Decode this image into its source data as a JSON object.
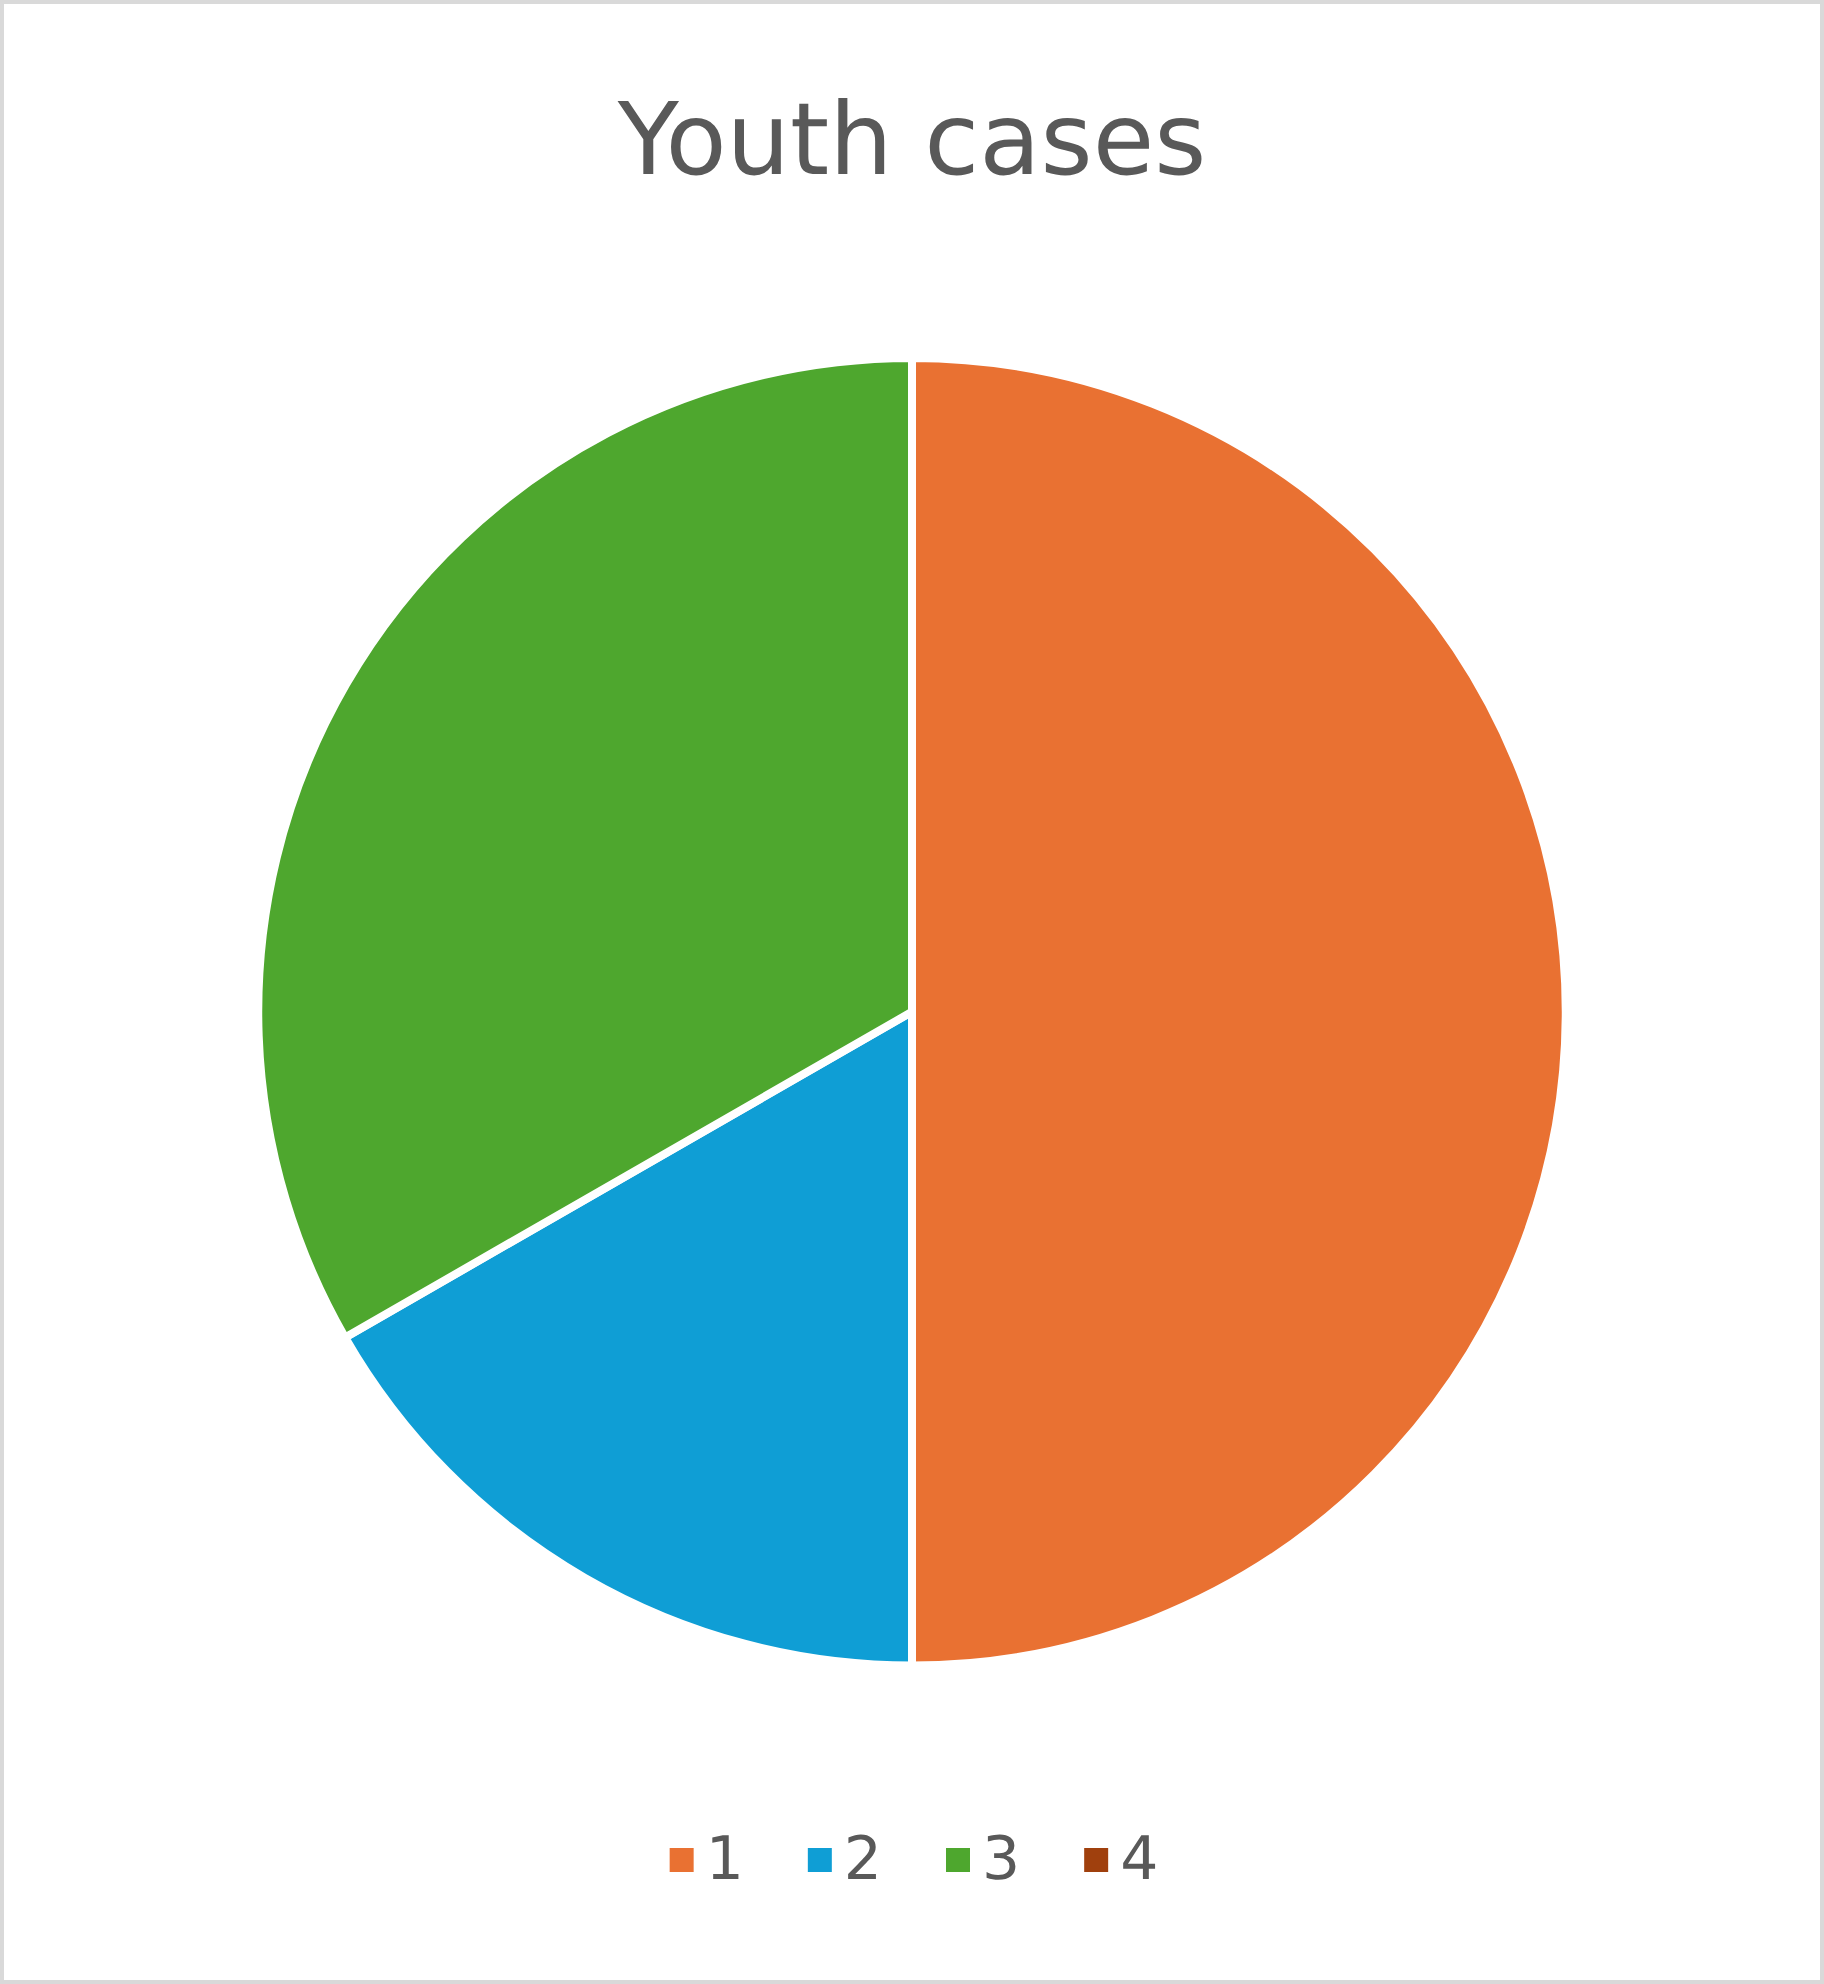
{
  "chart_data": {
    "type": "pie",
    "title": "Youth cases",
    "categories": [
      "1",
      "2",
      "3",
      "4"
    ],
    "values": [
      50,
      16.7,
      33.3,
      0
    ],
    "colors": [
      "#e97132",
      "#0f9ed5",
      "#4ea72e",
      "#a0400d"
    ],
    "legend": "bottom"
  }
}
